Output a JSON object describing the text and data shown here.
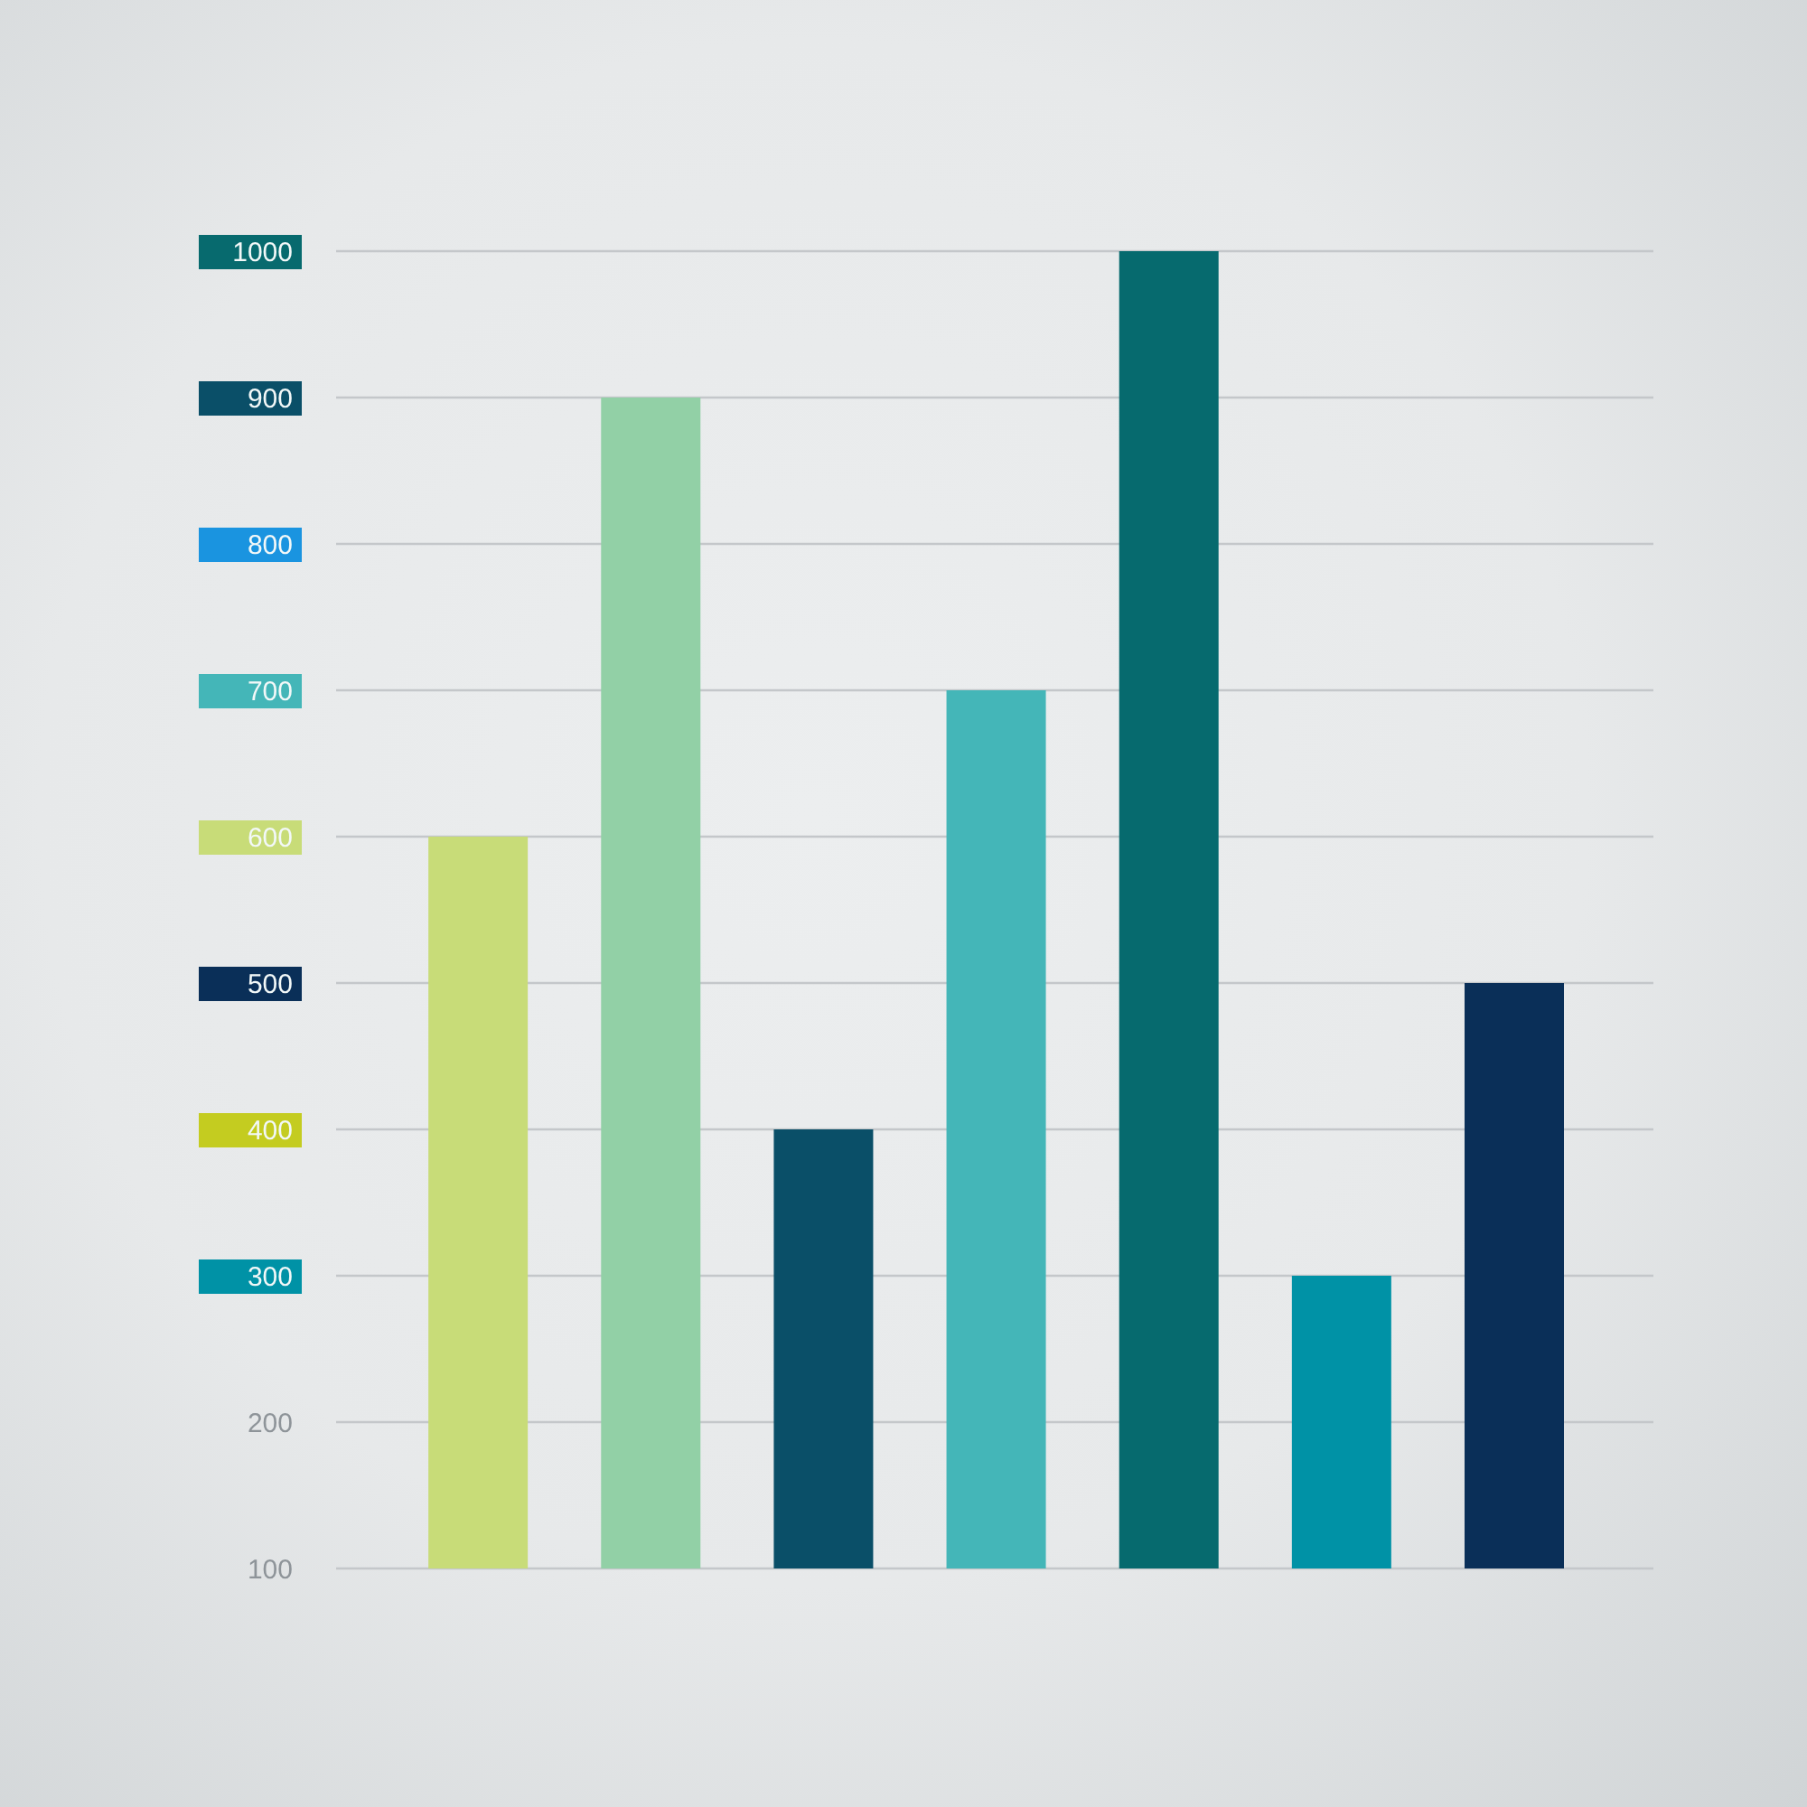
{
  "chart_data": {
    "type": "bar",
    "categories": [
      null,
      null,
      null,
      null,
      null,
      null,
      null
    ],
    "values": [
      600,
      900,
      400,
      700,
      1000,
      300,
      500
    ],
    "colors": [
      "#c8dc78",
      "#92d0a6",
      "#0a4f68",
      "#44b6b8",
      "#066a6e",
      "#0092a6",
      "#0a2f58"
    ],
    "ylim": [
      100,
      1000
    ],
    "yticks": [
      100,
      200,
      300,
      400,
      500,
      600,
      700,
      800,
      900,
      1000
    ],
    "grid": "y"
  }
}
